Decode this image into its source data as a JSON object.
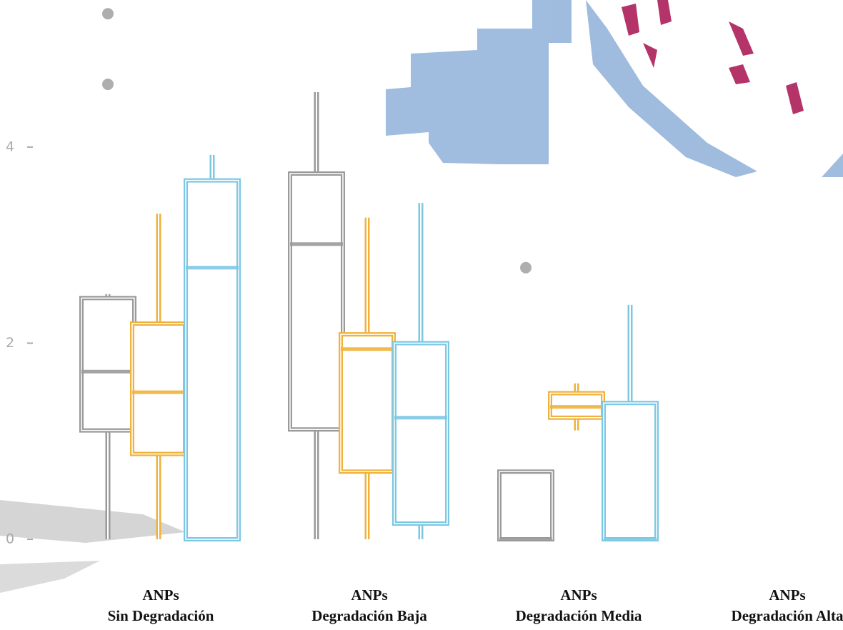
{
  "chart_data": {
    "type": "box",
    "categories": [
      [
        "ANPs",
        "Sin Degradación"
      ],
      [
        "ANPs",
        "Degradación Baja"
      ],
      [
        "ANPs",
        "Degradación Media"
      ],
      [
        "ANPs",
        "Degradación Alta"
      ]
    ],
    "ylim": [
      0,
      5.5
    ],
    "yticks": [
      0,
      2,
      4
    ],
    "series": [
      {
        "color": "#9a9a9a",
        "boxes": [
          {
            "whislo": 0,
            "q1": 1.11,
            "median": 1.71,
            "q3": 2.46,
            "whishi": 2.5,
            "outliers": [
              5.36,
              4.64
            ]
          },
          {
            "whislo": 0,
            "q1": 1.12,
            "median": 3.01,
            "q3": 3.73,
            "whishi": 4.56,
            "outliers": []
          },
          {
            "whislo": 0,
            "q1": 0,
            "median": 0,
            "q3": 0.69,
            "whishi": 0.69,
            "outliers": [
              2.77
            ]
          },
          null
        ]
      },
      {
        "color": "#f0b23c",
        "boxes": [
          {
            "whislo": 0,
            "q1": 0.87,
            "median": 1.5,
            "q3": 2.2,
            "whishi": 3.32,
            "outliers": []
          },
          {
            "whislo": 0,
            "q1": 0.69,
            "median": 1.94,
            "q3": 2.09,
            "whishi": 3.28,
            "outliers": []
          },
          {
            "whislo": 1.11,
            "q1": 1.24,
            "median": 1.35,
            "q3": 1.49,
            "whishi": 1.59,
            "outliers": []
          },
          null
        ]
      },
      {
        "color": "#7cc8e4",
        "boxes": [
          {
            "whislo": 0,
            "q1": 0,
            "median": 2.77,
            "q3": 3.66,
            "whishi": 3.92,
            "outliers": []
          },
          {
            "whislo": 0,
            "q1": 0.16,
            "median": 1.24,
            "q3": 2.0,
            "whishi": 3.43,
            "outliers": []
          },
          {
            "whislo": 0,
            "q1": 0,
            "median": 0,
            "q3": 1.39,
            "whishi": 2.39,
            "outliers": []
          },
          null
        ]
      }
    ]
  }
}
